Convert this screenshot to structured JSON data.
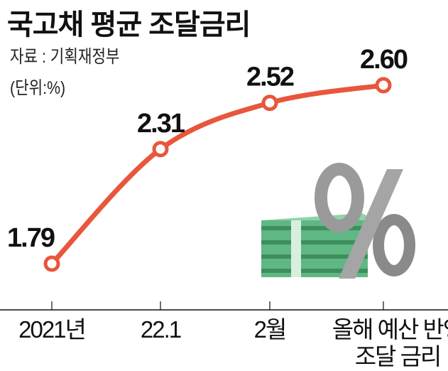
{
  "chart_data": {
    "type": "line",
    "title": "국고채 평균 조달금리",
    "source": "자료 : 기획재정부",
    "unit": "(단위:%)",
    "categories": [
      "2021년",
      "22.1",
      "2월",
      "올해 예산 반영 조달 금리"
    ],
    "category_lines": [
      [
        "2021년"
      ],
      [
        "22.1"
      ],
      [
        "2월"
      ],
      [
        "올해 예산 반영",
        "조달 금리"
      ]
    ],
    "values": [
      1.79,
      2.31,
      2.52,
      2.6
    ],
    "value_labels": [
      "1.79",
      "2.31",
      "2.52",
      "2.60"
    ],
    "xlabel": "",
    "ylabel": "",
    "ylim": [
      1.5,
      2.8
    ],
    "grid": false,
    "colors": {
      "line": "#e8563b",
      "marker_fill": "#ffffff",
      "text": "#111111"
    }
  }
}
